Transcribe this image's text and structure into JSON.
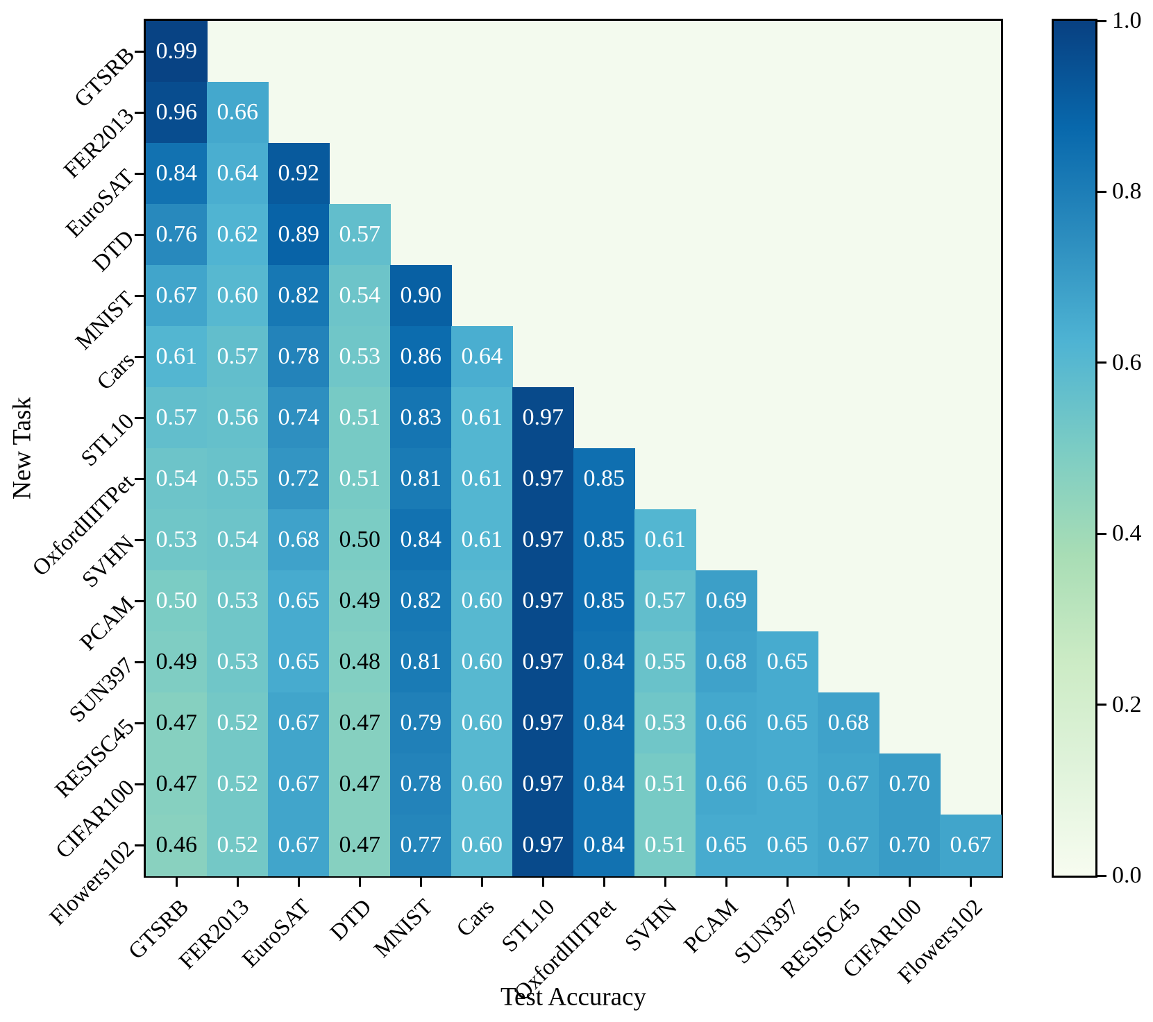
{
  "chart_data": {
    "type": "heatmap",
    "title": "",
    "xlabel": "Test Accuracy",
    "ylabel": "New Task",
    "tasks": [
      "GTSRB",
      "FER2013",
      "EuroSAT",
      "DTD",
      "MNIST",
      "Cars",
      "STL10",
      "OxfordIIITPet",
      "SVHN",
      "PCAM",
      "SUN397",
      "RESISC45",
      "CIFAR100",
      "Flowers102"
    ],
    "matrix": [
      [
        0.99
      ],
      [
        0.96,
        0.66
      ],
      [
        0.84,
        0.64,
        0.92
      ],
      [
        0.76,
        0.62,
        0.89,
        0.57
      ],
      [
        0.67,
        0.6,
        0.82,
        0.54,
        0.9
      ],
      [
        0.61,
        0.57,
        0.78,
        0.53,
        0.86,
        0.64
      ],
      [
        0.57,
        0.56,
        0.74,
        0.51,
        0.83,
        0.61,
        0.97
      ],
      [
        0.54,
        0.55,
        0.72,
        0.51,
        0.81,
        0.61,
        0.97,
        0.85
      ],
      [
        0.53,
        0.54,
        0.68,
        0.5,
        0.84,
        0.61,
        0.97,
        0.85,
        0.61
      ],
      [
        0.5,
        0.53,
        0.65,
        0.49,
        0.82,
        0.6,
        0.97,
        0.85,
        0.57,
        0.69
      ],
      [
        0.49,
        0.53,
        0.65,
        0.48,
        0.81,
        0.6,
        0.97,
        0.84,
        0.55,
        0.68,
        0.65
      ],
      [
        0.47,
        0.52,
        0.67,
        0.47,
        0.79,
        0.6,
        0.97,
        0.84,
        0.53,
        0.66,
        0.65,
        0.68
      ],
      [
        0.47,
        0.52,
        0.67,
        0.47,
        0.78,
        0.6,
        0.97,
        0.84,
        0.51,
        0.66,
        0.65,
        0.67,
        0.7
      ],
      [
        0.46,
        0.52,
        0.67,
        0.47,
        0.77,
        0.6,
        0.97,
        0.84,
        0.51,
        0.65,
        0.65,
        0.67,
        0.7,
        0.67
      ]
    ],
    "value_decimals": 2,
    "black_text_cells": [
      [
        8,
        3
      ],
      [
        9,
        3
      ],
      [
        10,
        0
      ],
      [
        10,
        3
      ],
      [
        11,
        0
      ],
      [
        11,
        3
      ],
      [
        12,
        0
      ],
      [
        12,
        3
      ],
      [
        13,
        0
      ],
      [
        13,
        3
      ]
    ],
    "cell_text_colors": {
      "default": "#ffffff",
      "dark": "#000000"
    },
    "mask_color": "#f3faee",
    "colormap": {
      "name": "GnBu",
      "anchors": [
        "#f7fcf0",
        "#e0f3db",
        "#ccebc5",
        "#a8ddb5",
        "#7bccc4",
        "#4eb3d3",
        "#2b8cbe",
        "#0868ac",
        "#084081"
      ]
    },
    "colorbar": {
      "min": 0.0,
      "max": 1.0,
      "tick_labels": [
        "1.0",
        "0.8",
        "0.6",
        "0.4",
        "0.2",
        "0.0"
      ]
    },
    "grid": false,
    "axis_ranges": {
      "rows": 14,
      "cols": 14
    }
  }
}
